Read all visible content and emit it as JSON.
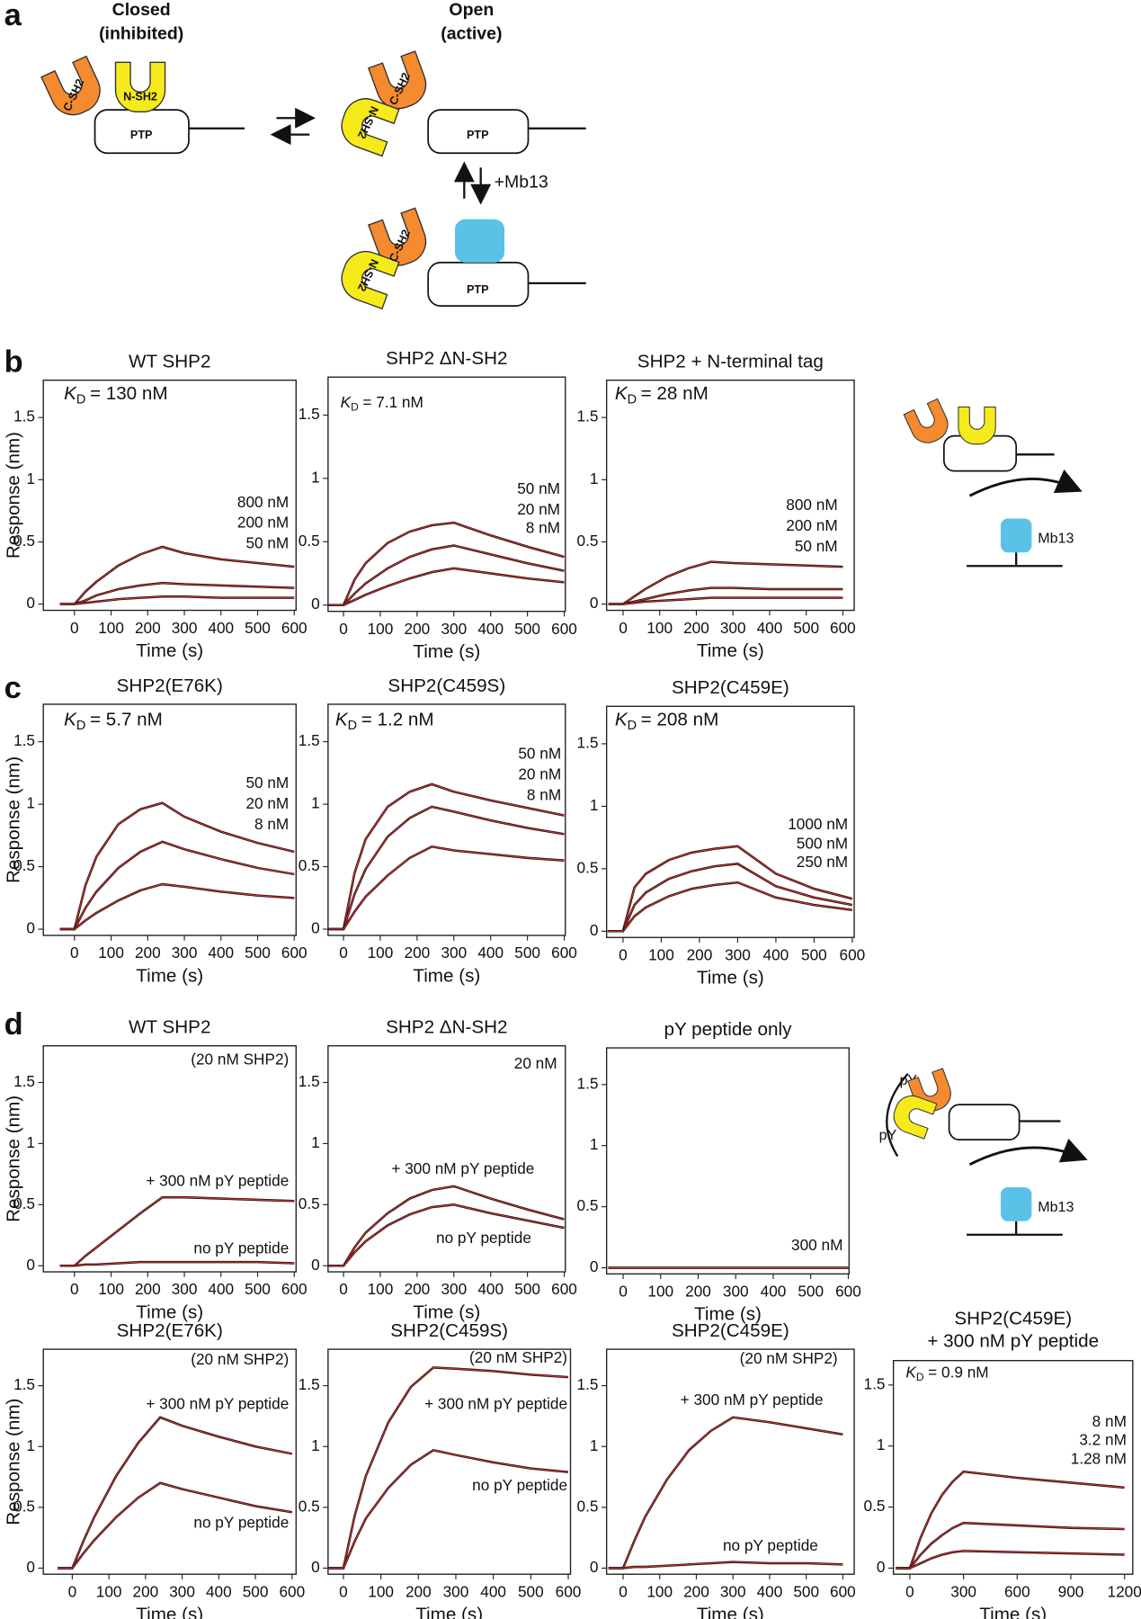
{
  "panel_labels": [
    "a",
    "b",
    "c",
    "d"
  ],
  "diagram": {
    "closed_title": "Closed",
    "closed_subtitle": "(inhibited)",
    "open_title": "Open",
    "open_subtitle": "(active)",
    "c_sh2": "C-SH2",
    "n_sh2": "N-SH2",
    "ptp": "PTP",
    "mb13_label": "+Mb13",
    "mb13": "Mb13",
    "py": "pY"
  },
  "chart_data": [
    {
      "type": "line",
      "title": "WT SHP2",
      "y_label": "Response (nm)",
      "x_label": "Time (s)",
      "kd_symbol": "K",
      "kd_sub": "D",
      "kd": "= 130 nM",
      "x": [
        -40,
        0,
        30,
        60,
        120,
        180,
        240,
        300,
        400,
        500,
        600
      ],
      "xlim": [
        -85,
        605
      ],
      "xticks": [
        0,
        100,
        200,
        300,
        400,
        500,
        600
      ],
      "ylim": [
        -0.05,
        1.8
      ],
      "yticks": [
        0,
        0.5,
        1,
        1.5
      ],
      "fit_color": "#e8302a",
      "series": [
        {
          "name": "800 nM",
          "color": "#111111",
          "values": [
            0,
            0,
            0.1,
            0.18,
            0.31,
            0.4,
            0.46,
            0.41,
            0.36,
            0.33,
            0.3
          ]
        },
        {
          "name": "200 nM",
          "color": "#111111",
          "values": [
            0,
            0,
            0.03,
            0.07,
            0.12,
            0.15,
            0.17,
            0.16,
            0.15,
            0.14,
            0.13
          ]
        },
        {
          "name": "50 nM",
          "color": "#111111",
          "values": [
            0,
            0,
            0.01,
            0.02,
            0.04,
            0.05,
            0.06,
            0.06,
            0.05,
            0.05,
            0.05
          ]
        }
      ]
    },
    {
      "type": "line",
      "title": "SHP2 ΔN-SH2",
      "x_label": "Time (s)",
      "kd_symbol": "K",
      "kd_sub": "D",
      "kd": "= 7.1 nM",
      "x": [
        -40,
        0,
        30,
        60,
        120,
        180,
        240,
        300,
        400,
        500,
        600
      ],
      "xlim": [
        -42,
        603
      ],
      "xticks": [
        0,
        100,
        200,
        300,
        400,
        500,
        600
      ],
      "ylim": [
        -0.05,
        1.8
      ],
      "yticks": [
        0,
        0.5,
        1,
        1.5
      ],
      "fit_color": "#e8302a",
      "series": [
        {
          "name": "50 nM",
          "color": "#111111",
          "values": [
            0,
            0,
            0.2,
            0.33,
            0.49,
            0.58,
            0.63,
            0.65,
            0.55,
            0.46,
            0.38
          ]
        },
        {
          "name": "20 nM",
          "color": "#111111",
          "values": [
            0,
            0,
            0.09,
            0.17,
            0.29,
            0.38,
            0.44,
            0.47,
            0.4,
            0.33,
            0.27
          ]
        },
        {
          "name": "8 nM",
          "color": "#111111",
          "values": [
            0,
            0,
            0.04,
            0.08,
            0.15,
            0.21,
            0.26,
            0.29,
            0.25,
            0.21,
            0.18
          ]
        }
      ]
    },
    {
      "type": "line",
      "title": "SHP2 + N-terminal tag",
      "x_label": "Time (s)",
      "kd_symbol": "K",
      "kd_sub": "D",
      "kd": "= 28 nM",
      "x": [
        -40,
        0,
        30,
        60,
        120,
        180,
        240,
        300,
        400,
        500,
        600
      ],
      "xlim": [
        -45,
        631
      ],
      "xticks": [
        0,
        100,
        200,
        300,
        400,
        500,
        600
      ],
      "ylim": [
        -0.05,
        1.8
      ],
      "yticks": [
        0,
        0.5,
        1,
        1.5
      ],
      "fit_color": "#e8302a",
      "series": [
        {
          "name": "800 nM",
          "color": "#111111",
          "values": [
            0,
            0,
            0.06,
            0.12,
            0.22,
            0.29,
            0.34,
            0.33,
            0.32,
            0.31,
            0.3
          ]
        },
        {
          "name": "200 nM",
          "color": "#111111",
          "values": [
            0,
            0,
            0.02,
            0.04,
            0.08,
            0.11,
            0.13,
            0.13,
            0.12,
            0.12,
            0.12
          ]
        },
        {
          "name": "50 nM",
          "color": "#111111",
          "values": [
            0,
            0,
            0.01,
            0.02,
            0.03,
            0.04,
            0.05,
            0.05,
            0.05,
            0.05,
            0.05
          ]
        }
      ]
    },
    {
      "type": "line",
      "title": "SHP2(E76K)",
      "y_label": "Response (nm)",
      "x_label": "Time (s)",
      "kd_symbol": "K",
      "kd_sub": "D",
      "kd": "= 5.7 nM",
      "x": [
        -40,
        0,
        30,
        60,
        120,
        180,
        240,
        300,
        400,
        500,
        600
      ],
      "xlim": [
        -85,
        605
      ],
      "xticks": [
        0,
        100,
        200,
        300,
        400,
        500,
        600
      ],
      "ylim": [
        -0.05,
        1.8
      ],
      "yticks": [
        0,
        0.5,
        1,
        1.5
      ],
      "fit_color": "#e8302a",
      "series": [
        {
          "name": "50 nM",
          "color": "#111111",
          "values": [
            0,
            0,
            0.35,
            0.58,
            0.84,
            0.96,
            1.01,
            0.9,
            0.78,
            0.69,
            0.62
          ]
        },
        {
          "name": "20 nM",
          "color": "#111111",
          "values": [
            0,
            0,
            0.17,
            0.3,
            0.49,
            0.62,
            0.7,
            0.64,
            0.56,
            0.49,
            0.44
          ]
        },
        {
          "name": "8 nM",
          "color": "#111111",
          "values": [
            0,
            0,
            0.07,
            0.13,
            0.23,
            0.31,
            0.36,
            0.34,
            0.3,
            0.27,
            0.25
          ]
        }
      ]
    },
    {
      "type": "line",
      "title": "SHP2(C459S)",
      "x_label": "Time (s)",
      "kd_symbol": "K",
      "kd_sub": "D",
      "kd": "= 1.2 nM",
      "x": [
        -40,
        0,
        30,
        60,
        120,
        180,
        240,
        300,
        400,
        500,
        600
      ],
      "xlim": [
        -42,
        603
      ],
      "xticks": [
        0,
        100,
        200,
        300,
        400,
        500,
        600
      ],
      "ylim": [
        -0.05,
        1.8
      ],
      "yticks": [
        0,
        0.5,
        1,
        1.5
      ],
      "fit_color": "#e8302a",
      "series": [
        {
          "name": "50 nM",
          "color": "#111111",
          "values": [
            0,
            0,
            0.45,
            0.72,
            0.98,
            1.1,
            1.16,
            1.1,
            1.03,
            0.97,
            0.91
          ]
        },
        {
          "name": "20 nM",
          "color": "#111111",
          "values": [
            0,
            0,
            0.28,
            0.48,
            0.74,
            0.89,
            0.98,
            0.94,
            0.87,
            0.81,
            0.76
          ]
        },
        {
          "name": "8 nM",
          "color": "#111111",
          "values": [
            0,
            0,
            0.14,
            0.26,
            0.43,
            0.57,
            0.66,
            0.63,
            0.6,
            0.57,
            0.55
          ]
        }
      ]
    },
    {
      "type": "line",
      "title": "SHP2(C459E)",
      "x_label": "Time (s)",
      "kd_symbol": "K",
      "kd_sub": "D",
      "kd": "= 208 nM",
      "x": [
        -40,
        0,
        30,
        60,
        120,
        180,
        240,
        300,
        400,
        500,
        600
      ],
      "xlim": [
        -43,
        605
      ],
      "xticks": [
        0,
        100,
        200,
        300,
        400,
        500,
        600
      ],
      "ylim": [
        -0.05,
        1.8
      ],
      "yticks": [
        0,
        0.5,
        1,
        1.5
      ],
      "fit_color": "#e8302a",
      "series": [
        {
          "name": "1000 nM",
          "color": "#111111",
          "values": [
            0,
            0,
            0.35,
            0.46,
            0.57,
            0.63,
            0.66,
            0.68,
            0.46,
            0.34,
            0.26
          ]
        },
        {
          "name": "500 nM",
          "color": "#111111",
          "values": [
            0,
            0,
            0.21,
            0.31,
            0.42,
            0.48,
            0.52,
            0.54,
            0.36,
            0.27,
            0.21
          ]
        },
        {
          "name": "250 nM",
          "color": "#111111",
          "values": [
            0,
            0,
            0.12,
            0.19,
            0.28,
            0.34,
            0.37,
            0.39,
            0.27,
            0.21,
            0.17
          ]
        }
      ]
    },
    {
      "type": "line",
      "title": "WT SHP2",
      "y_label": "Response (nm)",
      "x_label": "Time (s)",
      "note": "(20 nM SHP2)",
      "x": [
        -40,
        0,
        30,
        60,
        120,
        180,
        240,
        300,
        400,
        500,
        600
      ],
      "xlim": [
        -85,
        605
      ],
      "xticks": [
        0,
        100,
        200,
        300,
        400,
        500,
        600
      ],
      "ylim": [
        -0.05,
        1.8
      ],
      "yticks": [
        0,
        0.5,
        1,
        1.5
      ],
      "fit_color": "#e8302a",
      "series": [
        {
          "name": "+ 300 nM pY peptide",
          "color": "#111111",
          "values": [
            0,
            0,
            0.08,
            0.15,
            0.29,
            0.43,
            0.56,
            0.56,
            0.55,
            0.54,
            0.53
          ]
        },
        {
          "name": "no pY peptide",
          "color": "#111111",
          "values": [
            0,
            0,
            0.01,
            0.01,
            0.02,
            0.03,
            0.03,
            0.03,
            0.03,
            0.03,
            0.02
          ]
        }
      ]
    },
    {
      "type": "line",
      "title": "SHP2 ΔN-SH2",
      "x_label": "Time (s)",
      "note": "20 nM",
      "x": [
        -40,
        0,
        30,
        60,
        120,
        180,
        240,
        300,
        400,
        500,
        600
      ],
      "xlim": [
        -42,
        603
      ],
      "xticks": [
        0,
        100,
        200,
        300,
        400,
        500,
        600
      ],
      "ylim": [
        -0.05,
        1.8
      ],
      "yticks": [
        0,
        0.5,
        1,
        1.5
      ],
      "fit_color": "#e8302a",
      "series": [
        {
          "name": "+ 300 nM pY peptide",
          "color": "#111111",
          "values": [
            0,
            0,
            0.15,
            0.27,
            0.43,
            0.55,
            0.62,
            0.65,
            0.55,
            0.46,
            0.38
          ]
        },
        {
          "name": "no pY peptide",
          "color": "#111111",
          "values": [
            0,
            0,
            0.11,
            0.2,
            0.33,
            0.42,
            0.48,
            0.5,
            0.43,
            0.37,
            0.31
          ]
        }
      ]
    },
    {
      "type": "line",
      "title": "pY peptide only",
      "x_label": "Time (s)",
      "x": [
        -40,
        0,
        30,
        60,
        120,
        180,
        240,
        300,
        400,
        500,
        600
      ],
      "xlim": [
        -44,
        602
      ],
      "xticks": [
        0,
        100,
        200,
        300,
        400,
        500,
        600
      ],
      "ylim": [
        -0.05,
        1.8
      ],
      "yticks": [
        0,
        0.5,
        1,
        1.5
      ],
      "fit_color": "#e8302a",
      "series": [
        {
          "name": "300 nM",
          "color": "#111111",
          "values": [
            0,
            0,
            0,
            0,
            0,
            0,
            0,
            0,
            0,
            0,
            0
          ]
        }
      ]
    },
    {
      "type": "line",
      "title": "SHP2(E76K)",
      "y_label": "Response (nm)",
      "x_label": "Time (s)",
      "note": "(20 nM SHP2)",
      "x": [
        -40,
        0,
        30,
        60,
        120,
        180,
        240,
        300,
        400,
        500,
        600
      ],
      "xlim": [
        -79,
        611
      ],
      "xticks": [
        0,
        100,
        200,
        300,
        400,
        500,
        600
      ],
      "ylim": [
        -0.05,
        1.8
      ],
      "yticks": [
        0,
        0.5,
        1,
        1.5
      ],
      "fit_color": "#e8302a",
      "series": [
        {
          "name": "+ 300 nM pY peptide",
          "color": "#111111",
          "values": [
            0,
            0,
            0.22,
            0.42,
            0.76,
            1.03,
            1.24,
            1.17,
            1.08,
            1.0,
            0.94
          ]
        },
        {
          "name": "no pY peptide",
          "color": "#111111",
          "values": [
            0,
            0,
            0.12,
            0.23,
            0.42,
            0.58,
            0.7,
            0.65,
            0.58,
            0.51,
            0.46
          ]
        }
      ]
    },
    {
      "type": "line",
      "title": "SHP2(C459S)",
      "x_label": "Time (s)",
      "note": "(20 nM SHP2)",
      "x": [
        -40,
        0,
        30,
        60,
        120,
        180,
        240,
        300,
        400,
        500,
        600
      ],
      "xlim": [
        -41,
        606
      ],
      "xticks": [
        0,
        100,
        200,
        300,
        400,
        500,
        600
      ],
      "ylim": [
        -0.05,
        1.8
      ],
      "yticks": [
        0,
        0.5,
        1,
        1.5
      ],
      "fit_color": "#e8302a",
      "series": [
        {
          "name": "+ 300 nM pY peptide",
          "color": "#111111",
          "values": [
            0,
            0,
            0.43,
            0.76,
            1.2,
            1.49,
            1.65,
            1.64,
            1.62,
            1.59,
            1.57
          ]
        },
        {
          "name": "no pY peptide",
          "color": "#111111",
          "values": [
            0,
            0,
            0.22,
            0.41,
            0.66,
            0.85,
            0.97,
            0.93,
            0.87,
            0.82,
            0.79
          ]
        }
      ]
    },
    {
      "type": "line",
      "title": "SHP2(C459E)",
      "x_label": "Time (s)",
      "note": "(20 nM SHP2)",
      "x": [
        -40,
        0,
        30,
        60,
        120,
        180,
        240,
        300,
        400,
        500,
        600
      ],
      "xlim": [
        -45,
        631
      ],
      "xticks": [
        0,
        100,
        200,
        300,
        400,
        500,
        600
      ],
      "ylim": [
        -0.05,
        1.8
      ],
      "yticks": [
        0,
        0.5,
        1,
        1.5
      ],
      "fit_color": "#e8302a",
      "series": [
        {
          "name": "+ 300 nM pY peptide",
          "color": "#111111",
          "values": [
            0,
            0,
            0.22,
            0.42,
            0.73,
            0.97,
            1.13,
            1.24,
            1.2,
            1.15,
            1.1
          ]
        },
        {
          "name": "no pY peptide",
          "color": "#111111",
          "values": [
            0,
            0,
            0.01,
            0.01,
            0.02,
            0.03,
            0.04,
            0.05,
            0.04,
            0.04,
            0.03
          ]
        }
      ]
    },
    {
      "type": "line",
      "title": "SHP2(C459E)",
      "subtitle": "+ 300 nM pY peptide",
      "x_label": "Time (s)",
      "kd_symbol": "K",
      "kd_sub": "D",
      "kd": "= 0.9 nM",
      "x": [
        -80,
        0,
        60,
        120,
        180,
        240,
        300,
        600,
        900,
        1200
      ],
      "xlim": [
        -92,
        1246
      ],
      "xticks": [
        0,
        300,
        600,
        900,
        1200
      ],
      "ylim": [
        -0.05,
        1.7
      ],
      "yticks": [
        0,
        0.5,
        1,
        1.5
      ],
      "fit_color": "#e8302a",
      "series": [
        {
          "name": "8 nM",
          "color": "#111111",
          "values": [
            0,
            0,
            0.25,
            0.45,
            0.6,
            0.71,
            0.79,
            0.74,
            0.7,
            0.66
          ]
        },
        {
          "name": "3.2 nM",
          "color": "#111111",
          "values": [
            0,
            0,
            0.11,
            0.2,
            0.27,
            0.33,
            0.37,
            0.35,
            0.33,
            0.32
          ]
        },
        {
          "name": "1.28 nM",
          "color": "#111111",
          "values": [
            0,
            0,
            0.04,
            0.08,
            0.11,
            0.13,
            0.14,
            0.13,
            0.12,
            0.11
          ]
        }
      ]
    }
  ]
}
